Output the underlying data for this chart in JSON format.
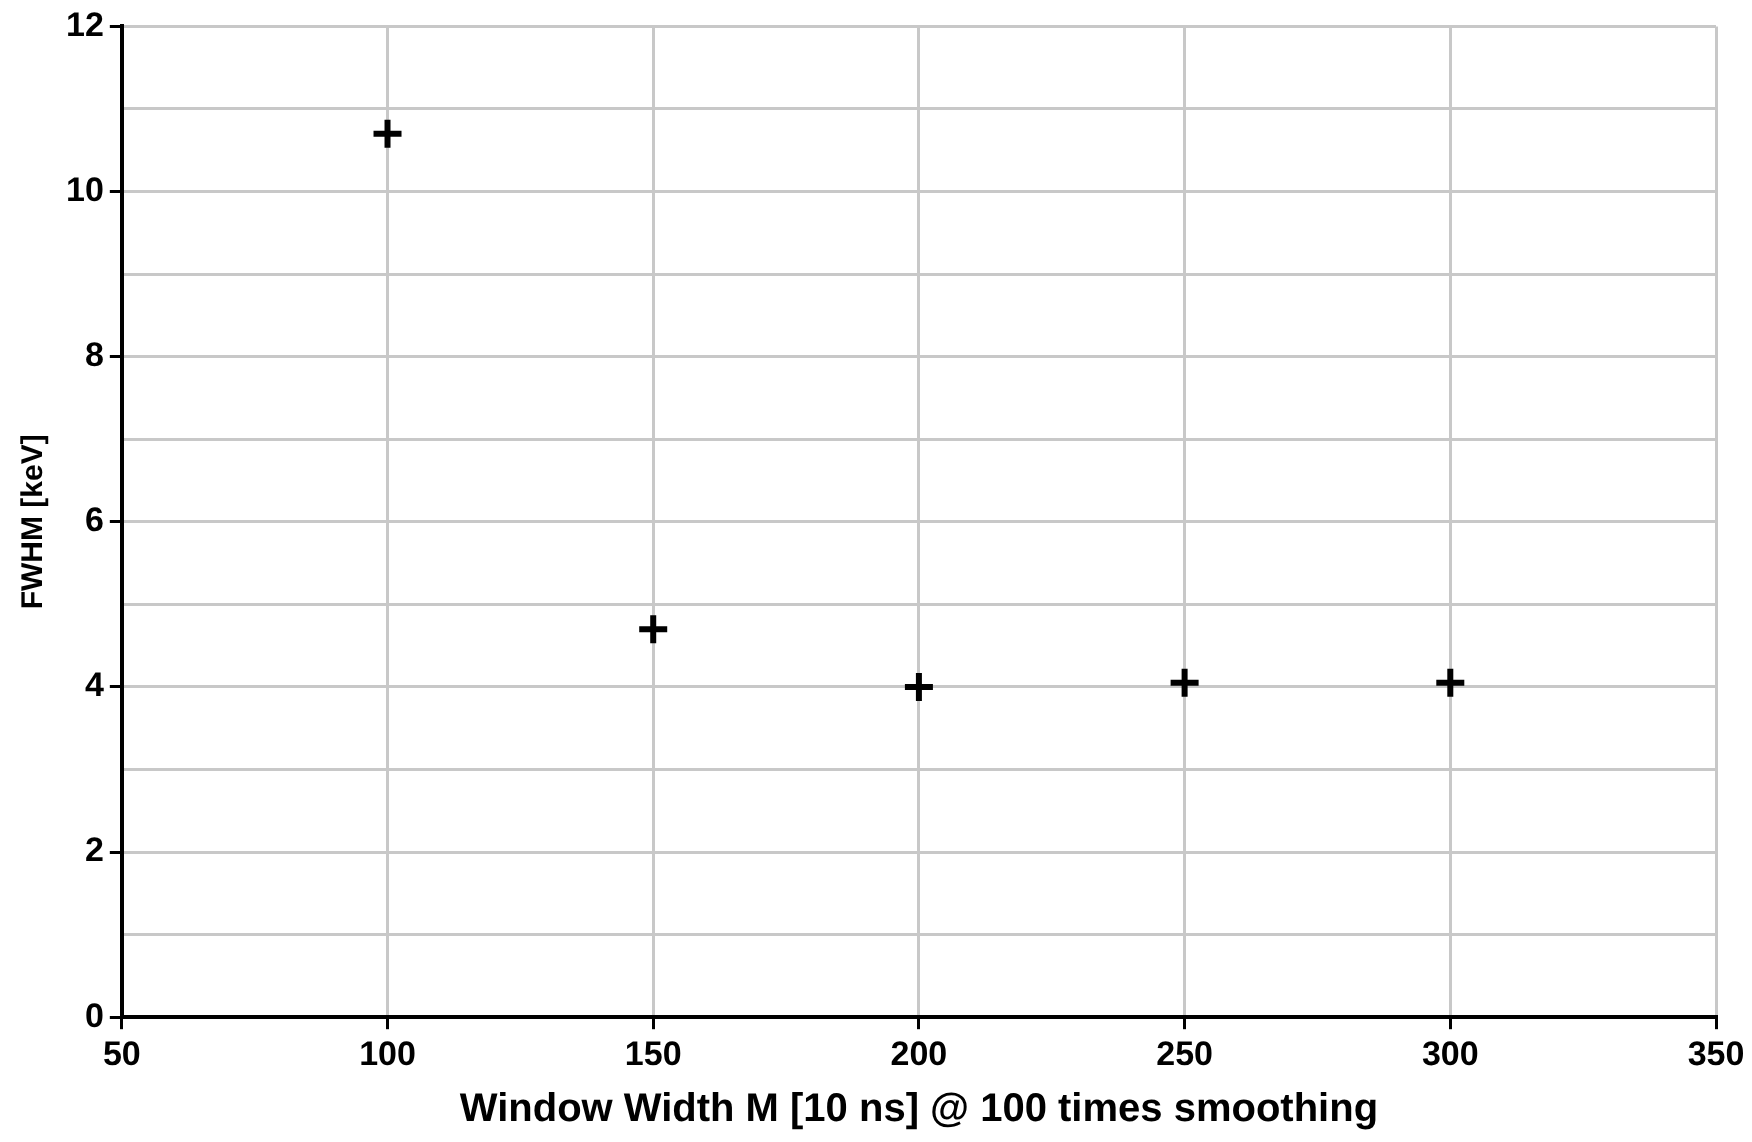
{
  "chart_data": {
    "type": "scatter",
    "xlabel": "Window Width M [10 ns] @ 100 times smoothing",
    "ylabel": "FWHM [keV]",
    "x": [
      100,
      150,
      200,
      250,
      300
    ],
    "series": [
      {
        "color": "#000000",
        "values": [
          10.7,
          4.7,
          4.0,
          4.05,
          4.05
        ]
      }
    ],
    "xlim": [
      50,
      350
    ],
    "xticks": [
      50,
      100,
      150,
      200,
      250,
      300,
      350
    ],
    "ylim": [
      0,
      12
    ],
    "yticks": [
      0,
      {
        "value": 1,
        "label": null
      },
      2,
      {
        "value": 3,
        "label": null
      },
      4,
      {
        "value": 5,
        "label": null
      },
      6,
      {
        "value": 7,
        "label": null
      },
      8,
      {
        "value": 9,
        "label": null
      },
      10,
      {
        "value": 11,
        "label": null
      },
      12
    ],
    "grid": true,
    "legend": false,
    "marker": "cross"
  }
}
